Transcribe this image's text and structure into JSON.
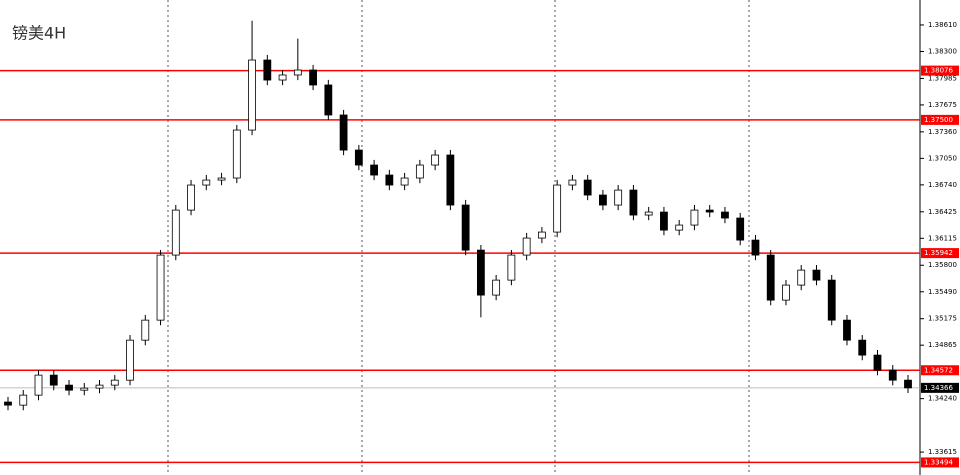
{
  "chart_data": {
    "type": "candlestick",
    "title": "镑美4H",
    "open": [
      1.342,
      1.34164,
      1.34281,
      1.34515,
      1.34398,
      1.34339,
      1.34363,
      1.34398,
      1.34456,
      1.34924,
      1.35158,
      1.35919,
      1.36445,
      1.36738,
      1.36796,
      1.3682,
      1.37381,
      1.382,
      1.37966,
      1.38025,
      1.38083,
      1.37908,
      1.37557,
      1.37147,
      1.36972,
      1.36855,
      1.36738,
      1.3682,
      1.36972,
      1.37089,
      1.36504,
      1.35977,
      1.35451,
      1.35626,
      1.35919,
      1.36118,
      1.36188,
      1.36738,
      1.36796,
      1.36621,
      1.36504,
      1.36679,
      1.36387,
      1.36422,
      1.36211,
      1.3627,
      1.36445,
      1.36422,
      1.36352,
      1.36094,
      1.35919,
      1.35392,
      1.35568,
      1.35743,
      1.35626,
      1.35158,
      1.34924,
      1.34749,
      1.34573,
      1.34456
    ],
    "high": [
      1.3426,
      1.34341,
      1.34575,
      1.34575,
      1.34458,
      1.34423,
      1.34458,
      1.34516,
      1.34984,
      1.35218,
      1.35979,
      1.36505,
      1.36798,
      1.36856,
      1.3688,
      1.37441,
      1.3866,
      1.3826,
      1.38085,
      1.3845,
      1.38143,
      1.37968,
      1.37617,
      1.37207,
      1.37032,
      1.36915,
      1.3688,
      1.37032,
      1.37149,
      1.37149,
      1.36564,
      1.36037,
      1.35686,
      1.35979,
      1.36178,
      1.36248,
      1.36798,
      1.36856,
      1.36856,
      1.36681,
      1.36739,
      1.36739,
      1.36482,
      1.36482,
      1.3633,
      1.36505,
      1.36505,
      1.36482,
      1.36412,
      1.36154,
      1.35979,
      1.35628,
      1.35803,
      1.35803,
      1.35686,
      1.35218,
      1.34984,
      1.34809,
      1.34633,
      1.34516
    ],
    "low": [
      1.34104,
      1.34104,
      1.34221,
      1.34338,
      1.34279,
      1.34279,
      1.34303,
      1.34338,
      1.34396,
      1.34864,
      1.35098,
      1.35859,
      1.36385,
      1.36678,
      1.36736,
      1.3676,
      1.37321,
      1.37906,
      1.37906,
      1.37965,
      1.37848,
      1.37497,
      1.37087,
      1.36912,
      1.36795,
      1.36678,
      1.36678,
      1.3676,
      1.36912,
      1.36444,
      1.35917,
      1.35191,
      1.35391,
      1.35566,
      1.35859,
      1.36058,
      1.36128,
      1.36678,
      1.36561,
      1.36444,
      1.36444,
      1.36327,
      1.36327,
      1.36151,
      1.36151,
      1.3621,
      1.36362,
      1.36292,
      1.36034,
      1.35859,
      1.35332,
      1.35332,
      1.35508,
      1.35566,
      1.35098,
      1.34864,
      1.34689,
      1.34513,
      1.34396,
      1.34306
    ],
    "close": [
      1.34164,
      1.34281,
      1.34515,
      1.34398,
      1.34339,
      1.34363,
      1.34398,
      1.34456,
      1.34924,
      1.35158,
      1.35919,
      1.36445,
      1.36738,
      1.36796,
      1.3682,
      1.37381,
      1.382,
      1.37966,
      1.38025,
      1.38083,
      1.37908,
      1.37557,
      1.37147,
      1.36972,
      1.36855,
      1.36738,
      1.3682,
      1.36972,
      1.37089,
      1.36504,
      1.35977,
      1.35451,
      1.35626,
      1.35919,
      1.36118,
      1.36188,
      1.36738,
      1.36796,
      1.36621,
      1.36504,
      1.36679,
      1.36387,
      1.36422,
      1.36211,
      1.3627,
      1.36445,
      1.36422,
      1.36352,
      1.36094,
      1.35919,
      1.35392,
      1.35568,
      1.35743,
      1.35626,
      1.35158,
      1.34924,
      1.34749,
      1.34573,
      1.34456,
      1.34366
    ],
    "up_color": "#ffffff",
    "down_color": "#000000",
    "level_color": "#ff0000",
    "ylim": [
      1.33347,
      1.38902
    ],
    "yticks": [
      {
        "value": 1.3861,
        "label": "1.38610"
      },
      {
        "value": 1.383,
        "label": "1.38300"
      },
      1.37985,
      1.37675,
      {
        "value": 1.3736,
        "label": "1.37360"
      },
      {
        "value": 1.3705,
        "label": "1.37050"
      },
      {
        "value": 1.3674,
        "label": "1.36740"
      },
      1.36425,
      1.36115,
      {
        "value": 1.358,
        "label": "1.35800"
      },
      {
        "value": 1.3549,
        "label": "1.35490"
      },
      1.35175,
      1.34865,
      {
        "value": 1.3424,
        "label": "1.34240"
      },
      1.33615
    ],
    "levels": [
      1.38076,
      {
        "value": 1.375,
        "label": "1.37500"
      },
      1.35942,
      1.34572,
      1.33494
    ],
    "last_price": 1.34366
  }
}
